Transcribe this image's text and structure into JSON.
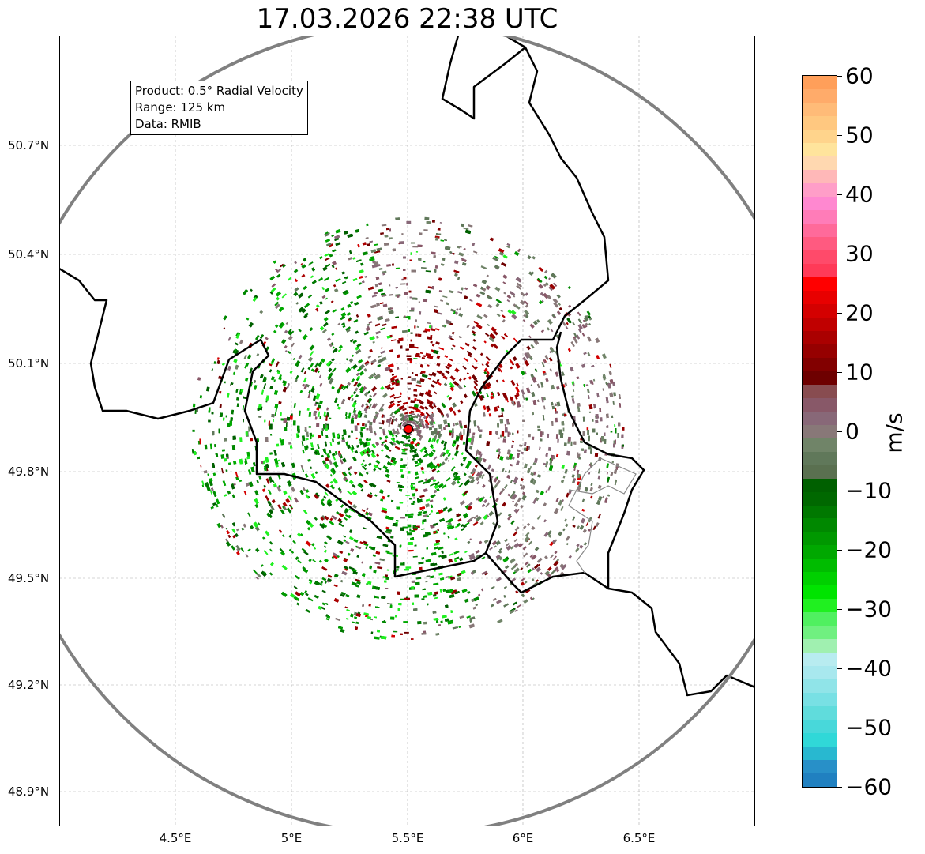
{
  "title": "17.03.2026 22:38 UTC",
  "info_box": {
    "product": "Product: 0.5° Radial Velocity",
    "range": "Range: 125 km",
    "data": "Data: RMIB"
  },
  "lon_ticks": [
    "4.5°E",
    "5°E",
    "5.5°E",
    "6°E",
    "6.5°E"
  ],
  "lat_ticks": [
    "50.7°N",
    "50.4°N",
    "50.1°N",
    "49.8°N",
    "49.5°N",
    "49.2°N",
    "48.9°N"
  ],
  "colorbar": {
    "label": "m/s",
    "ticks": [
      "60",
      "50",
      "40",
      "30",
      "20",
      "10",
      "0",
      "−10",
      "−20",
      "−30",
      "−40",
      "−50",
      "−60"
    ],
    "range": [
      -60,
      60
    ],
    "colors_top_to_bottom": [
      "#ff9f5a",
      "#ffab6a",
      "#ffbb78",
      "#ffc880",
      "#ffd48c",
      "#ffe49c",
      "#ffd8b0",
      "#ffb8b8",
      "#ff9ec8",
      "#ff88d0",
      "#ff7cb8",
      "#ff6a9a",
      "#ff5a80",
      "#ff4a6a",
      "#ff3a58",
      "#ff0000",
      "#e80000",
      "#d40000",
      "#c00000",
      "#aa0000",
      "#960000",
      "#820000",
      "#6e0000",
      "#884c50",
      "#885868",
      "#886878",
      "#887878",
      "#708468",
      "#60785a",
      "#5a7050",
      "#006000",
      "#006800",
      "#007800",
      "#008800",
      "#009800",
      "#00a800",
      "#00bc00",
      "#00d000",
      "#00e400",
      "#20f020",
      "#50f060",
      "#70f080",
      "#a0f0b0",
      "#b8ecf0",
      "#a8e8ee",
      "#90e4e8",
      "#78e0e4",
      "#60dcdc",
      "#48d8da",
      "#30d8d8",
      "#28b8d0",
      "#2890c8",
      "#2080c0"
    ]
  },
  "radar_site_color": "#ff0000",
  "range_ring_color": "#808080"
}
